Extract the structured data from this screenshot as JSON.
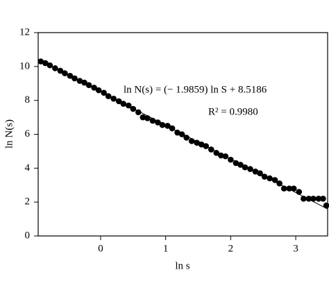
{
  "chart_data": {
    "type": "scatter",
    "x_label": "ln s",
    "y_label": "ln N(s)",
    "annotations": [
      "ln N(s) = (− 1.9859) ln S + 8.5186",
      "R² = 0.9980"
    ],
    "color": "#000000",
    "x": [
      -0.92,
      -0.85,
      -0.78,
      -0.7,
      -0.62,
      -0.55,
      -0.47,
      -0.4,
      -0.32,
      -0.25,
      -0.18,
      -0.1,
      -0.03,
      0.05,
      0.12,
      0.2,
      0.28,
      0.35,
      0.43,
      0.5,
      0.58,
      0.65,
      0.72,
      0.8,
      0.88,
      0.95,
      1.03,
      1.1,
      1.18,
      1.25,
      1.32,
      1.4,
      1.48,
      1.55,
      1.62,
      1.7,
      1.78,
      1.85,
      1.92,
      2.0,
      2.08,
      2.15,
      2.22,
      2.3,
      2.38,
      2.45,
      2.52,
      2.6,
      2.68,
      2.75,
      2.82,
      2.9,
      2.97,
      3.05,
      3.12,
      3.2,
      3.27,
      3.35,
      3.42,
      3.47
    ],
    "values": [
      10.3,
      10.2,
      10.07,
      9.9,
      9.75,
      9.6,
      9.45,
      9.3,
      9.15,
      9.05,
      8.9,
      8.75,
      8.6,
      8.45,
      8.25,
      8.1,
      7.95,
      7.8,
      7.7,
      7.5,
      7.3,
      7.0,
      6.95,
      6.8,
      6.7,
      6.55,
      6.5,
      6.35,
      6.1,
      6.0,
      5.8,
      5.6,
      5.5,
      5.4,
      5.3,
      5.1,
      4.9,
      4.75,
      4.7,
      4.5,
      4.3,
      4.2,
      4.05,
      3.95,
      3.8,
      3.7,
      3.5,
      3.4,
      3.3,
      3.1,
      2.8,
      2.8,
      2.8,
      2.6,
      2.2,
      2.2,
      2.2,
      2.2,
      2.2,
      1.8
    ],
    "fit": {
      "slope": -1.9859,
      "intercept": 8.5186
    },
    "xlim": [
      -0.96,
      3.49
    ],
    "xticks": [
      0,
      1,
      2,
      3
    ],
    "ylim": [
      0,
      12
    ],
    "yticks": [
      0,
      2,
      4,
      6,
      8,
      10,
      12
    ]
  }
}
